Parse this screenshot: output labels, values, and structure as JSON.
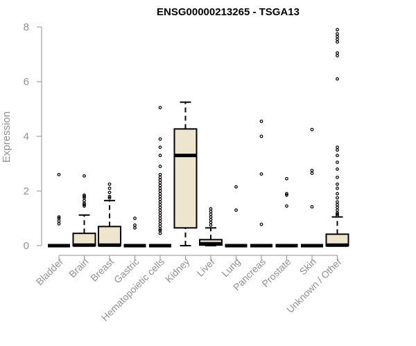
{
  "chart_data": {
    "type": "boxplot",
    "title": "ENSG00000213265 - TSGA13",
    "xlabel": "",
    "ylabel": "Expression",
    "ylim": [
      0,
      8
    ],
    "yticks": [
      0,
      2,
      4,
      6,
      8
    ],
    "grid": false,
    "box_color": "#ede6cc",
    "categories": [
      "Bladder",
      "Brain",
      "Breast",
      "Gastric",
      "Hematopoietic cells",
      "Kidney",
      "Liver",
      "Lung",
      "Pancreas",
      "Prostate",
      "Skin",
      "Unknown / Other"
    ],
    "boxes": [
      {
        "category": "Bladder",
        "min": 0,
        "q1": 0,
        "median": 0,
        "q3": 0,
        "max": 0,
        "outliers": [
          0.8,
          0.9,
          1.0,
          1.05,
          2.6
        ]
      },
      {
        "category": "Brain",
        "min": 0,
        "q1": 0,
        "median": 0.02,
        "q3": 0.45,
        "max": 1.12,
        "outliers": [
          1.45,
          1.5,
          1.55,
          1.65,
          1.75,
          1.8,
          1.85,
          2.55
        ]
      },
      {
        "category": "Breast",
        "min": 0,
        "q1": 0,
        "median": 0.02,
        "q3": 0.7,
        "max": 1.65,
        "outliers": [
          1.75,
          1.8,
          1.95,
          2.1,
          2.25
        ]
      },
      {
        "category": "Gastric",
        "min": 0,
        "q1": 0,
        "median": 0,
        "q3": 0,
        "max": 0,
        "outliers": [
          0.65,
          0.75,
          1.0
        ]
      },
      {
        "category": "Hematopoietic cells",
        "min": 0,
        "q1": 0,
        "median": 0,
        "q3": 0,
        "max": 0,
        "outliers": [
          0.45,
          0.55,
          0.6,
          0.7,
          0.8,
          0.9,
          1.0,
          1.1,
          1.2,
          1.3,
          1.4,
          1.5,
          1.6,
          1.7,
          1.8,
          1.9,
          2.0,
          2.1,
          2.2,
          2.3,
          2.4,
          2.5,
          2.6,
          2.9,
          3.3,
          3.6,
          3.9,
          5.05
        ]
      },
      {
        "category": "Kidney",
        "min": 0,
        "q1": 0.65,
        "median": 3.3,
        "q3": 4.27,
        "max": 5.25,
        "outliers": []
      },
      {
        "category": "Liver",
        "min": 0,
        "q1": 0.02,
        "median": 0.07,
        "q3": 0.22,
        "max": 0.65,
        "outliers": [
          0.75,
          0.85,
          0.95,
          1.05,
          1.15,
          1.25,
          1.35
        ]
      },
      {
        "category": "Lung",
        "min": 0,
        "q1": 0,
        "median": 0,
        "q3": 0,
        "max": 0,
        "outliers": [
          1.3,
          2.15
        ]
      },
      {
        "category": "Pancreas",
        "min": 0,
        "q1": 0,
        "median": 0,
        "q3": 0,
        "max": 0,
        "outliers": [
          0.78,
          2.62,
          4.0,
          4.55
        ]
      },
      {
        "category": "Prostate",
        "min": 0,
        "q1": 0,
        "median": 0,
        "q3": 0,
        "max": 0,
        "outliers": [
          1.45,
          1.85,
          1.9,
          2.45
        ]
      },
      {
        "category": "Skin",
        "min": 0,
        "q1": 0,
        "median": 0,
        "q3": 0,
        "max": 0,
        "outliers": [
          1.42,
          2.65,
          2.75,
          4.25
        ]
      },
      {
        "category": "Unknown / Other",
        "min": 0,
        "q1": 0,
        "median": 0.02,
        "q3": 0.42,
        "max": 1.05,
        "outliers": [
          1.1,
          1.15,
          1.2,
          1.3,
          1.4,
          1.5,
          1.6,
          1.75,
          1.9,
          2.1,
          2.25,
          2.5,
          2.8,
          3.05,
          3.3,
          3.5,
          3.6,
          6.1,
          6.95,
          7.05,
          7.45,
          7.55,
          7.65,
          7.75,
          7.9
        ]
      }
    ]
  }
}
